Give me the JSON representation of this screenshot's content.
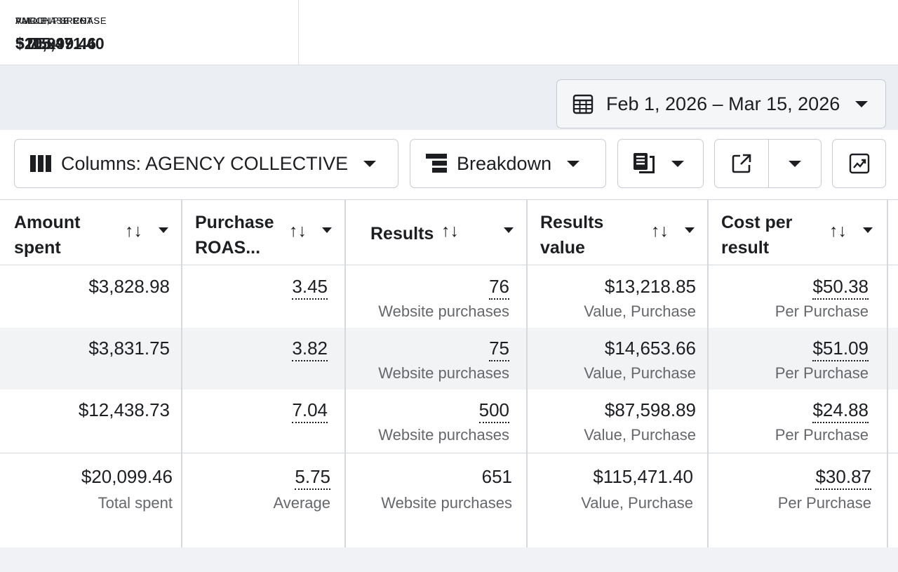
{
  "summary": [
    {
      "label": "AMOUNT SPENT",
      "value": "$20,099.46"
    },
    {
      "label": "PURCHASE ROAS",
      "value": "5.75x"
    },
    {
      "label": "VALUE, PURCHASE",
      "value": "$115,471.40"
    }
  ],
  "toolbar": {
    "date_range": "Feb 1, 2026 – Mar 15, 2026",
    "columns_label": "Columns: AGENCY COLLECTIVE",
    "breakdown_label": "Breakdown"
  },
  "table": {
    "headers": [
      {
        "line1": "Amount",
        "line2": "spent"
      },
      {
        "line1": "Purchase",
        "line2": "ROAS..."
      },
      {
        "line1": "Results",
        "line2": ""
      },
      {
        "line1": "Results",
        "line2": "value"
      },
      {
        "line1": "Cost per",
        "line2": "result"
      }
    ],
    "sort_glyph": "↑↓",
    "rows": [
      {
        "spent": "$3,828.98",
        "roas": "3.45",
        "results": "76",
        "results_sub": "Website purchases",
        "value": "$13,218.85",
        "value_sub": "Value, Purchase",
        "cost": "$50.38",
        "cost_sub": "Per Purchase"
      },
      {
        "spent": "$3,831.75",
        "roas": "3.82",
        "results": "75",
        "results_sub": "Website purchases",
        "value": "$14,653.66",
        "value_sub": "Value, Purchase",
        "cost": "$51.09",
        "cost_sub": "Per Purchase"
      },
      {
        "spent": "$12,438.73",
        "roas": "7.04",
        "results": "500",
        "results_sub": "Website purchases",
        "value": "$87,598.89",
        "value_sub": "Value, Purchase",
        "cost": "$24.88",
        "cost_sub": "Per Purchase"
      }
    ],
    "total": {
      "spent": "$20,099.46",
      "spent_sub": "Total spent",
      "roas": "5.75",
      "roas_sub": "Average",
      "results": "651",
      "results_sub": "Website purchases",
      "value": "$115,471.40",
      "value_sub": "Value, Purchase",
      "cost": "$30.87",
      "cost_sub": "Per Purchase"
    }
  },
  "icons": {
    "calendar": "calendar-icon",
    "columns": "columns-icon",
    "breakdown": "breakdown-icon",
    "reports": "reports-icon",
    "export": "export-icon",
    "chart": "chart-icon"
  }
}
